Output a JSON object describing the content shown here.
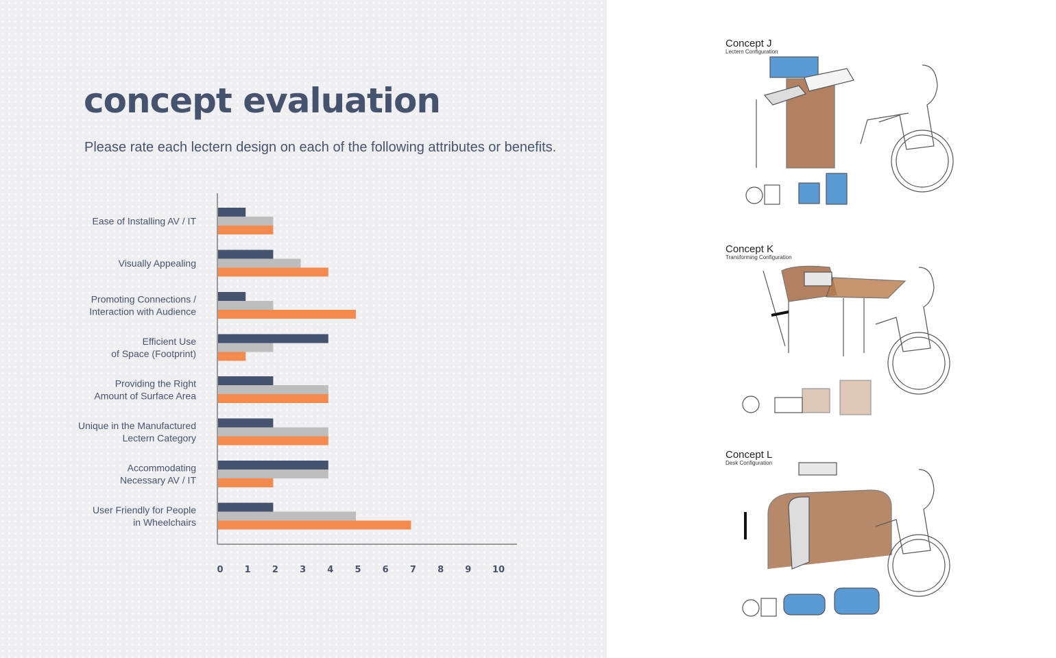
{
  "page": {
    "title": "concept evaluation",
    "subtitle": "Please rate each lectern design on each of the following attributes or benefits."
  },
  "chart_data": {
    "type": "bar",
    "orientation": "horizontal",
    "categories": [
      [
        "Ease of Installing AV / IT"
      ],
      [
        "Visually Appealing"
      ],
      [
        "Promoting Connections /",
        "Interaction with Audience"
      ],
      [
        "Efficient Use",
        "of Space (Footprint)"
      ],
      [
        "Providing the Right",
        "Amount of Surface Area"
      ],
      [
        "Unique in the Manufactured",
        "Lectern Category"
      ],
      [
        "Accommodating",
        "Necessary AV / IT"
      ],
      [
        "User Friendly for People",
        "in Wheelchairs"
      ]
    ],
    "series": [
      {
        "color": "#46536e",
        "values": [
          1,
          2,
          1,
          4,
          2,
          2,
          4,
          2
        ]
      },
      {
        "color": "#bdbdbd",
        "values": [
          2,
          3,
          2,
          2,
          4,
          4,
          4,
          5
        ]
      },
      {
        "color": "#f58a4f",
        "values": [
          2,
          4,
          5,
          1,
          4,
          4,
          2,
          7
        ]
      }
    ],
    "xlim": [
      0,
      10
    ],
    "xticks": [
      "0",
      "1",
      "2",
      "3",
      "4",
      "5",
      "6",
      "7",
      "8",
      "9",
      "10"
    ],
    "grid": false,
    "legend": "none"
  },
  "concepts": [
    {
      "title": "Concept J",
      "subtitle": "Lectern Configuration",
      "accent": "#5b9bd5",
      "body": "#a0623a"
    },
    {
      "title": "Concept K",
      "subtitle": "Transforming Configuration",
      "accent": "#c9c9c9",
      "body": "#a0623a"
    },
    {
      "title": "Concept L",
      "subtitle": "Desk Configuration",
      "accent": "#5b9bd5",
      "body": "#a0623a"
    }
  ]
}
